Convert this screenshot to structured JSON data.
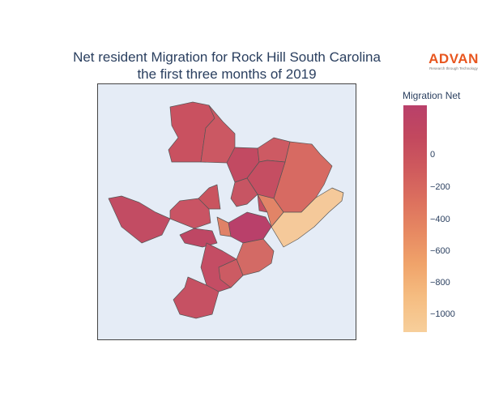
{
  "title": {
    "line1": "Net resident Migration for Rock Hill South Carolina",
    "line2": "the first three months of 2019"
  },
  "logo": {
    "word": "ADVAN",
    "tagline": "Research through Technology"
  },
  "legend": {
    "title": "Migration Net",
    "ticks": [
      "0",
      "−200",
      "−400",
      "−600",
      "−800",
      "−1000"
    ],
    "tick_values": [
      0,
      -200,
      -400,
      -600,
      -800,
      -1000
    ],
    "range": [
      -1100,
      330
    ],
    "colorscale": [
      "#b9406a",
      "#c2485e",
      "#cf5a5d",
      "#dc705e",
      "#e78962",
      "#f0a36a",
      "#f5bc80",
      "#f7cf9b"
    ]
  },
  "colors": {
    "background": "#e5ecf6",
    "border": "#444444",
    "accent": "#e8561f"
  }
}
